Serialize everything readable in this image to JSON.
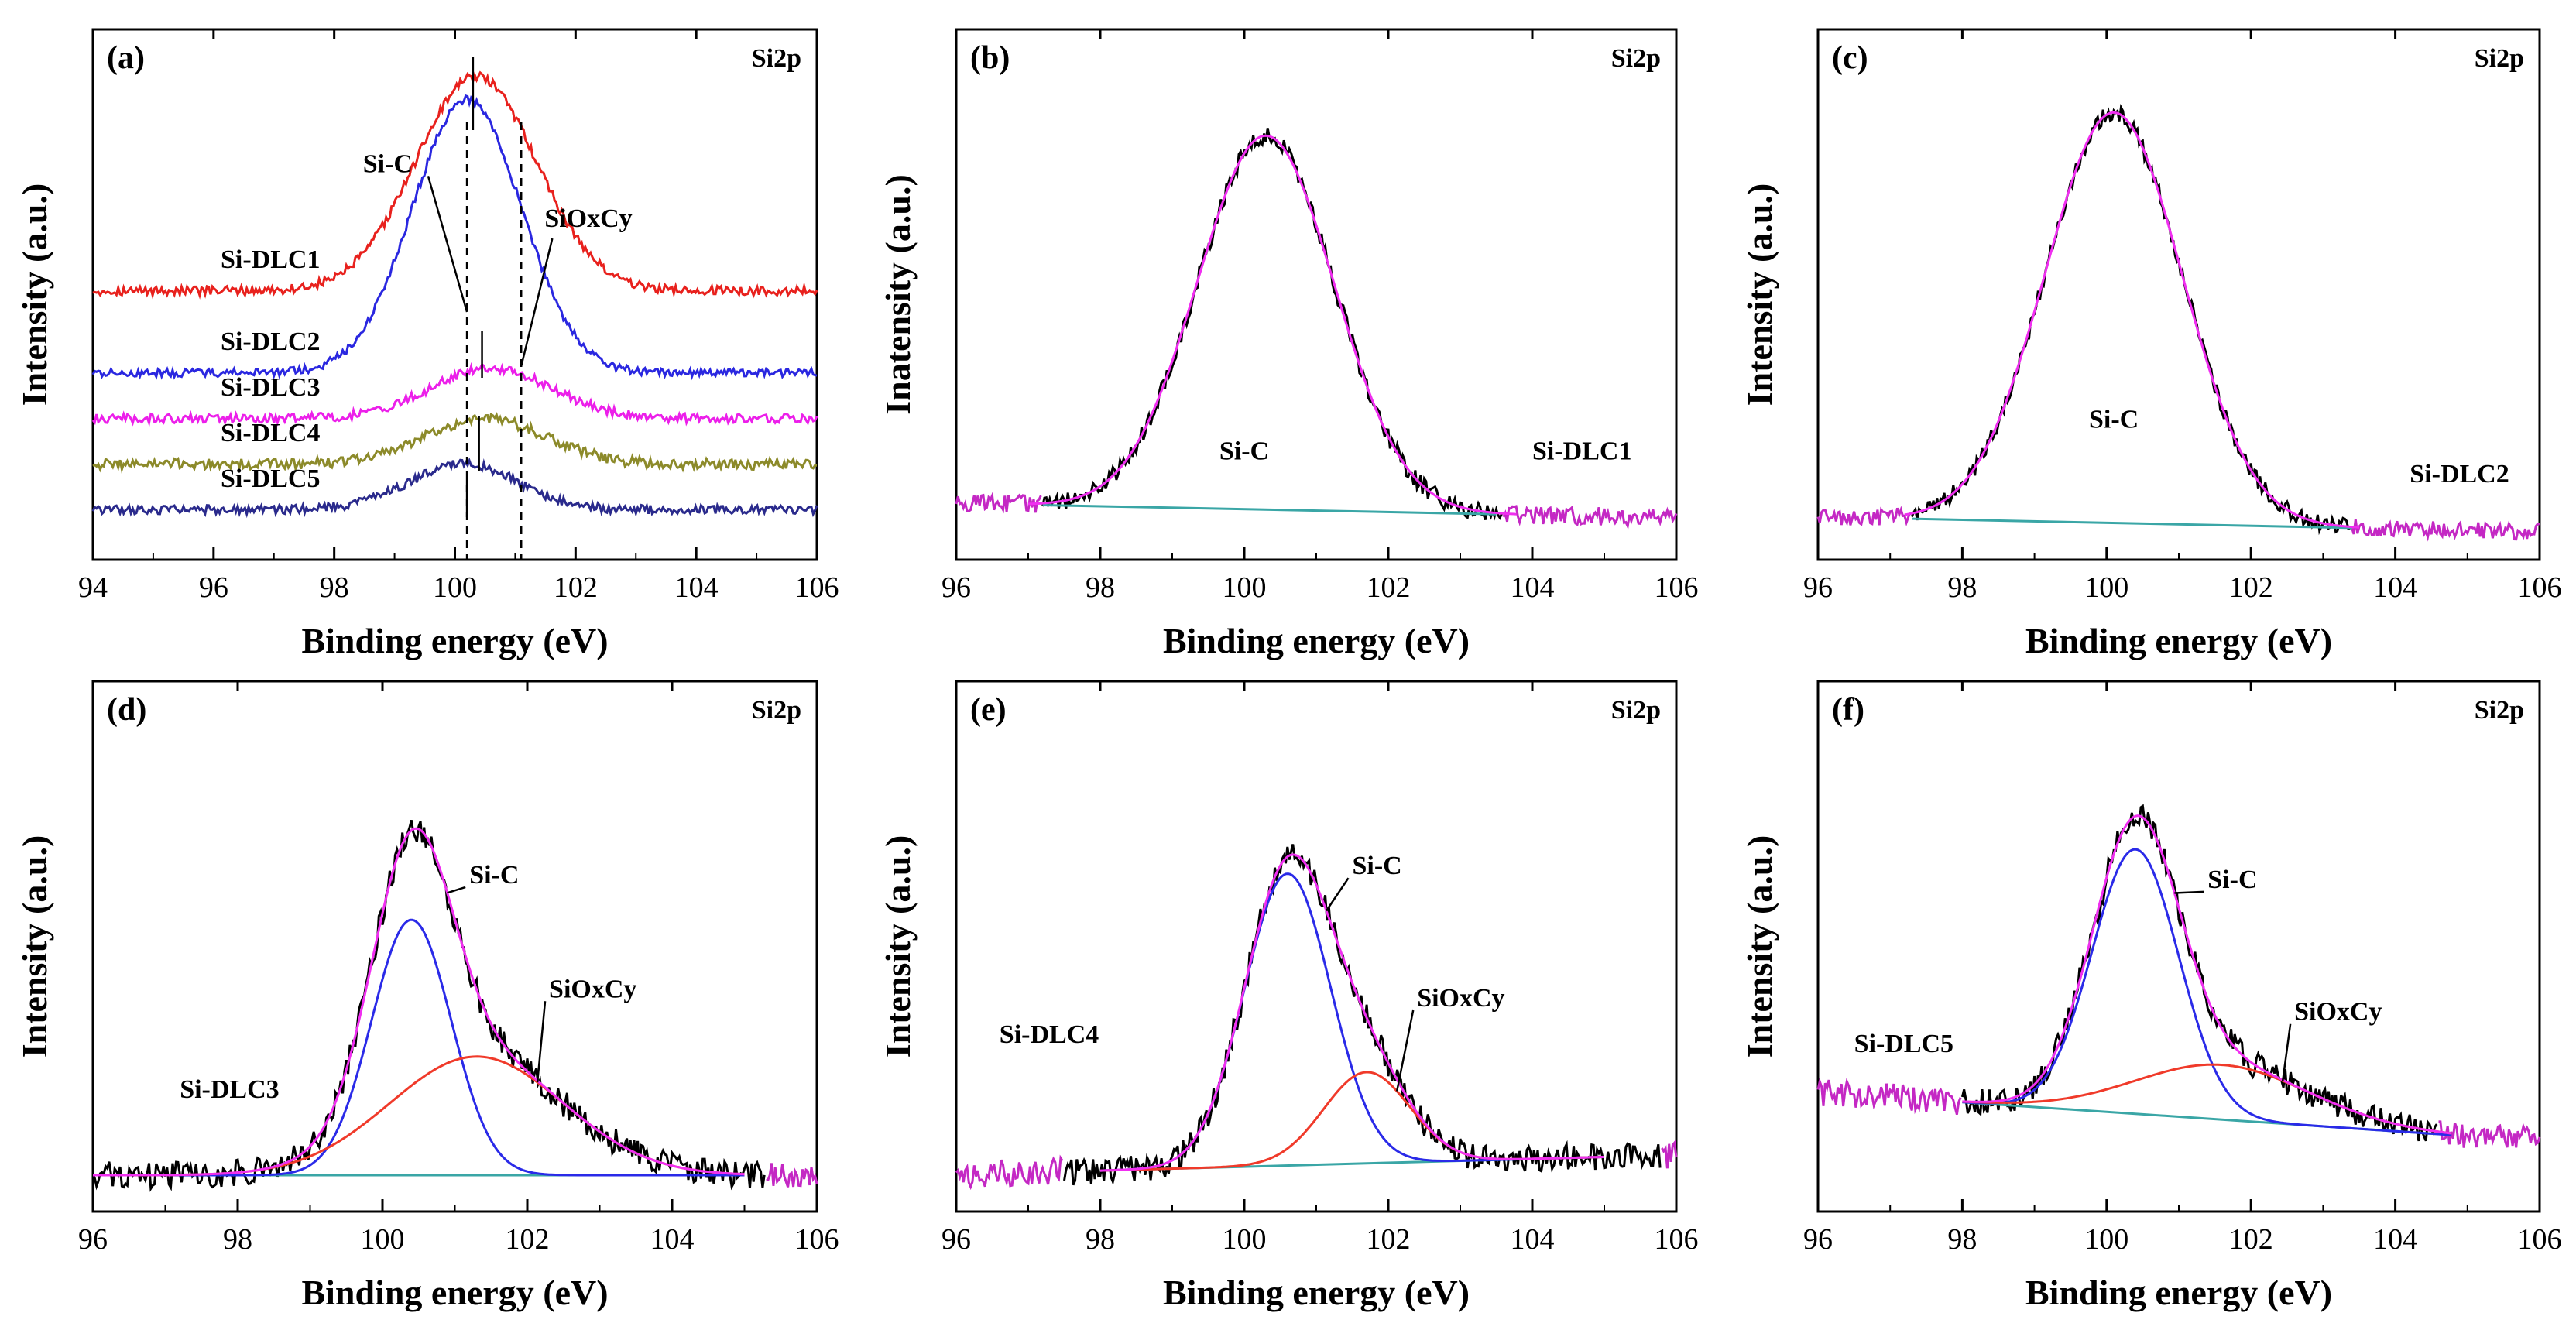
{
  "figure": {
    "description_title": "",
    "spectrum_label": "Si2p"
  },
  "chart_data": [
    {
      "panel": "(a)",
      "type": "line",
      "title": "Si2p",
      "xlabel": "Binding energy (eV)",
      "ylabel": "Intensity (a.u.)",
      "xlim": [
        94,
        106
      ],
      "xticks": [
        "94",
        "96",
        "98",
        "100",
        "102",
        "104",
        "106"
      ],
      "ylim": [
        0,
        100
      ],
      "reference_lines_eV": [
        100.2,
        101.1
      ],
      "annotations": [
        {
          "text": "Si-C",
          "x": 99.3,
          "y": 78
        },
        {
          "text": "SiOxCy",
          "x": 102.0,
          "y": 66
        }
      ],
      "series": [
        {
          "name": "Si-DLC1",
          "color": "#e8211d",
          "baseline": 52,
          "peak": 100.35,
          "sigma": 1.0,
          "height": 47,
          "noise": 1.0
        },
        {
          "name": "Si-DLC2",
          "color": "#2a27e0",
          "baseline": 34,
          "peak": 100.2,
          "sigma": 0.9,
          "height": 60,
          "noise": 0.9
        },
        {
          "name": "Si-DLC3",
          "color": "#ec1fea",
          "baseline": 24,
          "peak": 100.6,
          "sigma": 1.0,
          "height": 11,
          "noise": 1.0
        },
        {
          "name": "Si-DLC4",
          "color": "#8c8a2a",
          "baseline": 14,
          "peak": 100.5,
          "sigma": 1.0,
          "height": 10,
          "noise": 1.2
        },
        {
          "name": "Si-DLC5",
          "color": "#2a2a8c",
          "baseline": 4,
          "peak": 100.15,
          "sigma": 0.9,
          "height": 10,
          "noise": 1.0
        }
      ]
    },
    {
      "panel": "(b)",
      "type": "line",
      "title": "Si2p",
      "xlabel": "Binding energy (eV)",
      "ylabel": "Inatensity (a.u.)",
      "sample": "Si-DLC1",
      "xlim": [
        96,
        106
      ],
      "xticks": [
        "96",
        "98",
        "100",
        "102",
        "104",
        "106"
      ],
      "ylim": [
        0,
        100
      ],
      "annotations": [
        {
          "text": "Si-C",
          "x": 100.0,
          "y": 15
        }
      ],
      "sample_pos": {
        "x": 104.0,
        "y": 15
      },
      "baseline": {
        "from": [
          97.2,
          5
        ],
        "to": [
          103.5,
          3
        ]
      },
      "fit_range": [
        97.0,
        103.8
      ],
      "raw_range": [
        97.2,
        103.6
      ],
      "peaks": [
        {
          "name": "Si-C",
          "center": 100.3,
          "sigma": 0.95,
          "height": 82,
          "color": "#f02ff0"
        }
      ],
      "envelope_color": "#f02ff0",
      "raw_color": "#000000",
      "tail_color": "#c428c4",
      "noise": 2.0
    },
    {
      "panel": "(c)",
      "type": "line",
      "title": "Si2p",
      "xlabel": "Binding energy (eV)",
      "ylabel": "Intensity (a.u.)",
      "sample": "Si-DLC2",
      "xlim": [
        96,
        106
      ],
      "xticks": [
        "96",
        "98",
        "100",
        "102",
        "104",
        "106"
      ],
      "ylim": [
        0,
        100
      ],
      "annotations": [
        {
          "text": "Si-C",
          "x": 100.1,
          "y": 22
        }
      ],
      "sample_pos": {
        "x": 104.2,
        "y": 10
      },
      "baseline": {
        "from": [
          97.3,
          2
        ],
        "to": [
          103.4,
          0
        ]
      },
      "fit_range": [
        97.2,
        103.5
      ],
      "raw_range": [
        97.3,
        103.4
      ],
      "peaks": [
        {
          "name": "Si-C",
          "center": 100.1,
          "sigma": 0.95,
          "height": 90,
          "color": "#f02ff0"
        }
      ],
      "envelope_color": "#f02ff0",
      "raw_color": "#000000",
      "tail_color": "#c428c4",
      "noise": 1.8
    },
    {
      "panel": "(d)",
      "type": "line",
      "title": "Si2p",
      "xlabel": "Binding energy (eV)",
      "ylabel": "Intensity (a.u.)",
      "sample": "Si-DLC3",
      "xlim": [
        96,
        106
      ],
      "xticks": [
        "96",
        "98",
        "100",
        "102",
        "104",
        "106"
      ],
      "ylim": [
        0,
        100
      ],
      "annotations": [
        {
          "text": "Si-C",
          "x": 101.2,
          "y": 65
        },
        {
          "text": "SiOxCy",
          "x": 102.3,
          "y": 40
        }
      ],
      "sample_pos": {
        "x": 97.2,
        "y": 18
      },
      "baseline": {
        "from": [
          96.0,
          1
        ],
        "to": [
          105.0,
          1
        ]
      },
      "fit_range": [
        96.0,
        105.0
      ],
      "raw_range": [
        96.0,
        105.3
      ],
      "peaks": [
        {
          "name": "Si-C",
          "center": 100.4,
          "sigma": 0.55,
          "height": 56,
          "color": "#2a2ae8"
        },
        {
          "name": "SiOxCy",
          "center": 101.3,
          "sigma": 1.2,
          "height": 26,
          "color": "#f03a2a"
        }
      ],
      "envelope_color": "#f02ff0",
      "raw_color": "#000000",
      "tail_color": "#c428c4",
      "noise": 3.0
    },
    {
      "panel": "(e)",
      "type": "line",
      "title": "Si2p",
      "xlabel": "Binding energy (eV)",
      "ylabel": "Intensity (a.u.)",
      "sample": "Si-DLC4",
      "xlim": [
        96,
        106
      ],
      "xticks": [
        "96",
        "98",
        "100",
        "102",
        "104",
        "106"
      ],
      "ylim": [
        0,
        100
      ],
      "annotations": [
        {
          "text": "Si-C",
          "x": 101.5,
          "y": 67
        },
        {
          "text": "SiOxCy",
          "x": 102.4,
          "y": 38
        }
      ],
      "sample_pos": {
        "x": 96.6,
        "y": 30
      },
      "baseline": {
        "from": [
          98.0,
          2
        ],
        "to": [
          105.0,
          5
        ]
      },
      "fit_range": [
        98.0,
        105.0
      ],
      "raw_range": [
        97.5,
        105.8
      ],
      "peaks": [
        {
          "name": "Si-C",
          "center": 100.6,
          "sigma": 0.6,
          "height": 64,
          "color": "#2a2ae8"
        },
        {
          "name": "SiOxCy",
          "center": 101.7,
          "sigma": 0.6,
          "height": 20,
          "color": "#f03a2a"
        }
      ],
      "envelope_color": "#f02ff0",
      "raw_color": "#000000",
      "tail_color": "#c428c4",
      "noise": 3.0
    },
    {
      "panel": "(f)",
      "type": "line",
      "title": "Si2p",
      "xlabel": "Binding energy (eV)",
      "ylabel": "Intensity (a.u.)",
      "sample": "Si-DLC5",
      "xlim": [
        96,
        106
      ],
      "xticks": [
        "96",
        "98",
        "100",
        "102",
        "104",
        "106"
      ],
      "ylim": [
        0,
        100
      ],
      "annotations": [
        {
          "text": "Si-C",
          "x": 101.4,
          "y": 64
        },
        {
          "text": "SiOxCy",
          "x": 102.6,
          "y": 35
        }
      ],
      "sample_pos": {
        "x": 96.5,
        "y": 28
      },
      "baseline": {
        "from": [
          98.0,
          17
        ],
        "to": [
          104.6,
          10
        ]
      },
      "fit_range": [
        98.0,
        104.8
      ],
      "raw_range": [
        98.0,
        104.6
      ],
      "peaks": [
        {
          "name": "Si-C",
          "center": 100.4,
          "sigma": 0.6,
          "height": 58,
          "color": "#2a2ae8"
        },
        {
          "name": "SiOxCy",
          "center": 101.6,
          "sigma": 1.2,
          "height": 12,
          "color": "#f03a2a"
        }
      ],
      "envelope_color": "#f02ff0",
      "raw_color": "#000000",
      "tail_color": "#c428c4",
      "noise": 3.0
    }
  ]
}
